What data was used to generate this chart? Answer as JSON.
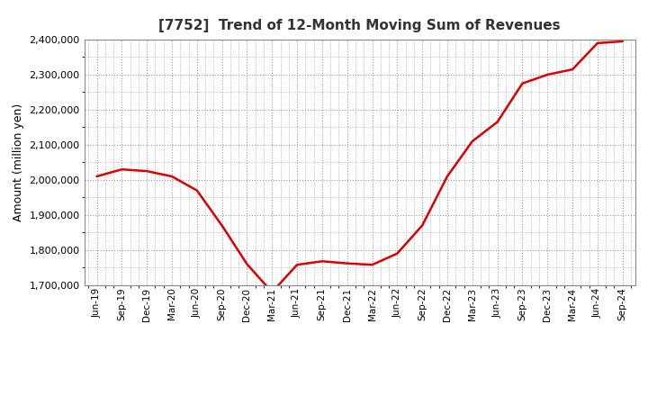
{
  "title": "[7752]  Trend of 12-Month Moving Sum of Revenues",
  "ylabel": "Amount (million yen)",
  "line_color": "#dd0000",
  "background_color": "#ffffff",
  "plot_bg_color": "#ffffff",
  "grid_color": "#999999",
  "ylim": [
    1700000,
    2400000
  ],
  "yticks": [
    1700000,
    1800000,
    1900000,
    2000000,
    2100000,
    2200000,
    2300000,
    2400000
  ],
  "x_labels": [
    "Jun-19",
    "Sep-19",
    "Dec-19",
    "Mar-20",
    "Jun-20",
    "Sep-20",
    "Dec-20",
    "Mar-21",
    "Jun-21",
    "Sep-21",
    "Dec-21",
    "Mar-22",
    "Jun-22",
    "Sep-22",
    "Dec-22",
    "Mar-23",
    "Jun-23",
    "Sep-23",
    "Dec-23",
    "Mar-24",
    "Jun-24",
    "Sep-24"
  ],
  "values": [
    2010000,
    2030000,
    2025000,
    2010000,
    1970000,
    1870000,
    1760000,
    1680000,
    1758000,
    1768000,
    1762000,
    1758000,
    1790000,
    1870000,
    2010000,
    2110000,
    2165000,
    2275000,
    2300000,
    2315000,
    2390000,
    2395000
  ]
}
